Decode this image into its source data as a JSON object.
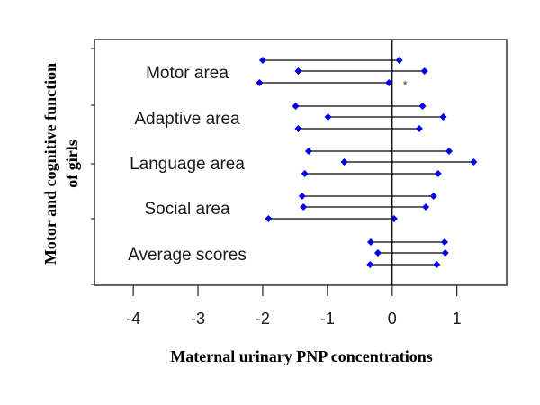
{
  "chart_data": {
    "type": "forest",
    "title": "",
    "xlabel": "Maternal urinary PNP concentrations",
    "ylabel_lines": [
      "Motor and cognitive function",
      "of girls"
    ],
    "xlim": [
      -4.6,
      1.77
    ],
    "xticks": [
      -4,
      -3,
      -2,
      -1,
      0,
      1
    ],
    "xtick_labels": [
      "-4",
      "-3",
      "-2",
      "-1",
      "0",
      "1"
    ],
    "reference_line": 0,
    "marker_color": "#0000ee",
    "line_color": "#000000",
    "grid": false,
    "legend": "none",
    "groups": [
      {
        "label": "Motor area",
        "intervals": [
          {
            "low": -2.0,
            "high": 0.11
          },
          {
            "low": -1.45,
            "high": 0.5
          },
          {
            "low": -2.05,
            "high": -0.05
          }
        ],
        "annotation": "*"
      },
      {
        "label": "Adaptive area",
        "intervals": [
          {
            "low": -1.49,
            "high": 0.47
          },
          {
            "low": -0.99,
            "high": 0.79
          },
          {
            "low": -1.45,
            "high": 0.42
          }
        ],
        "annotation": ""
      },
      {
        "label": "Language area",
        "intervals": [
          {
            "low": -1.29,
            "high": 0.88
          },
          {
            "low": -0.74,
            "high": 1.26
          },
          {
            "low": -1.35,
            "high": 0.71
          }
        ],
        "annotation": ""
      },
      {
        "label": "Social area",
        "intervals": [
          {
            "low": -1.39,
            "high": 0.64
          },
          {
            "low": -1.37,
            "high": 0.52
          },
          {
            "low": -1.91,
            "high": 0.03
          }
        ],
        "annotation": ""
      },
      {
        "label": "Average scores",
        "intervals": [
          {
            "low": -0.33,
            "high": 0.81
          },
          {
            "low": -0.22,
            "high": 0.82
          },
          {
            "low": -0.34,
            "high": 0.69
          }
        ],
        "annotation": ""
      }
    ]
  }
}
